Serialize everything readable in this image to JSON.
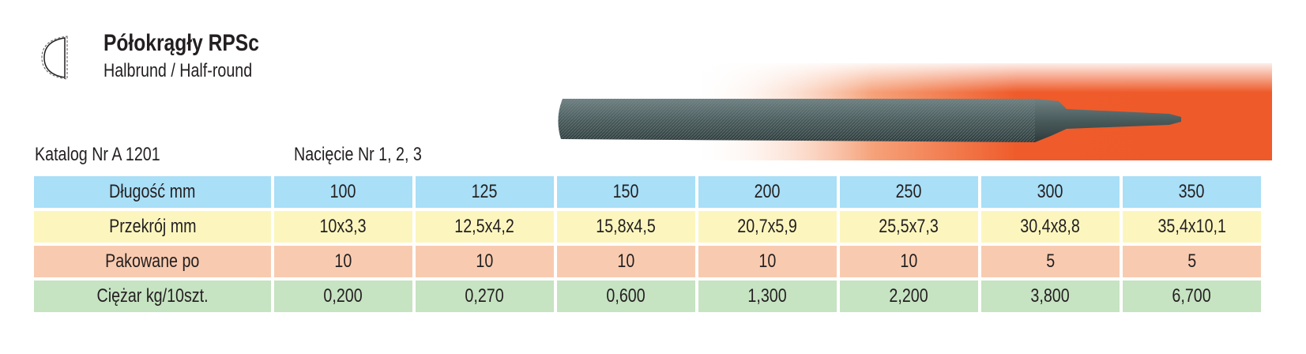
{
  "header": {
    "title": "Półokrągły RPSc",
    "subtitle": "Halbrund / Half-round",
    "icon": "half-round-profile-icon"
  },
  "catalog": "Katalog Nr A 1201",
  "cut": "Nacięcie Nr 1, 2, 3",
  "image": {
    "subject": "half-round-file",
    "background_color": "#ef5b2a"
  },
  "table": {
    "rows": [
      {
        "label": "Długość mm",
        "color": "#a9dff7",
        "values": [
          "100",
          "125",
          "150",
          "200",
          "250",
          "300",
          "350"
        ]
      },
      {
        "label": "Przekrój mm",
        "color": "#fcf6be",
        "values": [
          "10x3,3",
          "12,5x4,2",
          "15,8x4,5",
          "20,7x5,9",
          "25,5x7,3",
          "30,4x8,8",
          "35,4x10,1"
        ]
      },
      {
        "label": "Pakowane po",
        "color": "#f8cbb0",
        "values": [
          "10",
          "10",
          "10",
          "10",
          "10",
          "5",
          "5"
        ]
      },
      {
        "label": "Ciężar kg/10szt.",
        "color": "#c6e3c2",
        "values": [
          "0,200",
          "0,270",
          "0,600",
          "1,300",
          "2,200",
          "3,800",
          "6,700"
        ]
      }
    ]
  }
}
